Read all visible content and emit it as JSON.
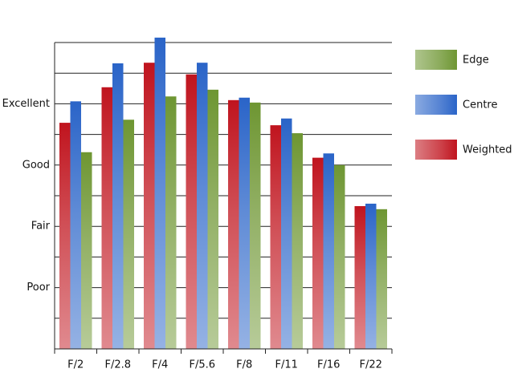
{
  "chart_data": {
    "type": "bar",
    "categories": [
      "F/2",
      "F/2.8",
      "F/4",
      "F/5.6",
      "F/8",
      "F/11",
      "F/16",
      "F/22"
    ],
    "series": [
      {
        "name": "Weighted",
        "color": "#c0141e",
        "values": [
          3.69,
          4.27,
          4.67,
          4.48,
          4.06,
          3.65,
          3.12,
          2.33
        ]
      },
      {
        "name": "Centre",
        "color": "#2a64c8",
        "values": [
          4.04,
          4.66,
          5.08,
          4.67,
          4.1,
          3.76,
          3.19,
          2.37
        ]
      },
      {
        "name": "Edge",
        "color": "#6e9632",
        "values": [
          3.21,
          3.74,
          4.12,
          4.23,
          4.02,
          3.52,
          3.0,
          2.28
        ]
      }
    ],
    "ylim": [
      0,
      5
    ],
    "yticks": [
      {
        "value": 1,
        "label": "Poor"
      },
      {
        "value": 2,
        "label": "Fair"
      },
      {
        "value": 3,
        "label": "Good"
      },
      {
        "value": 4,
        "label": "Excellent"
      }
    ],
    "yminor": [
      0.5,
      1.5,
      2.5,
      3.5,
      4.5,
      5
    ],
    "grid": true
  }
}
